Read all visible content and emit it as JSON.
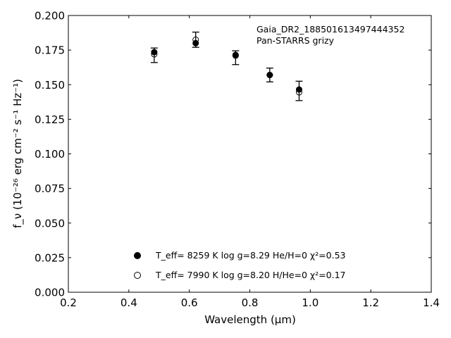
{
  "chart_data": {
    "type": "scatter",
    "xlabel": "Wavelength (μm)",
    "ylabel": "f_ν (10⁻²⁶ erg cm⁻² s⁻¹ Hz⁻¹)",
    "xlim": [
      0.2,
      1.4
    ],
    "ylim": [
      0.0,
      0.2
    ],
    "x_ticks": [
      0.2,
      0.4,
      0.6,
      0.8,
      1.0,
      1.2,
      1.4
    ],
    "x_tick_labels": [
      "0.2",
      "0.4",
      "0.6",
      "0.8",
      "1.0",
      "1.2",
      "1.4"
    ],
    "y_ticks": [
      0.0,
      0.025,
      0.05,
      0.075,
      0.1,
      0.125,
      0.15,
      0.175,
      0.2
    ],
    "y_tick_labels": [
      "0.000",
      "0.025",
      "0.050",
      "0.075",
      "0.100",
      "0.125",
      "0.150",
      "0.175",
      "0.200"
    ],
    "grid": false,
    "annotations": [
      "Gaia_DR2_188501613497444352",
      "Pan-STARRS grizy"
    ],
    "observed": {
      "x": [
        0.484,
        0.621,
        0.753,
        0.866,
        0.963
      ],
      "y": [
        0.1715,
        0.1825,
        0.1695,
        0.157,
        0.1455
      ],
      "yerr_low": [
        0.0055,
        0.0055,
        0.005,
        0.005,
        0.007
      ],
      "yerr_high": [
        0.005,
        0.0055,
        0.005,
        0.005,
        0.007
      ]
    },
    "series": [
      {
        "name": "T_eff=  8259 K  log g=8.29  He/H=0  χ²=0.53",
        "marker": "filled-circle",
        "x": [
          0.484,
          0.621,
          0.753,
          0.866,
          0.963
        ],
        "y": [
          0.1735,
          0.18,
          0.1715,
          0.157,
          0.1465
        ]
      },
      {
        "name": "T_eff=  7990 K  log g=8.20  H/He=0  χ²=0.17",
        "marker": "open-circle",
        "x": [
          0.484,
          0.621,
          0.753,
          0.866,
          0.963
        ],
        "y": [
          0.172,
          0.1825,
          0.171,
          0.157,
          0.1445
        ]
      }
    ],
    "legend_position": "lower-center"
  },
  "colors": {
    "marker": "#000000",
    "axis": "#000000",
    "background": "#ffffff"
  }
}
